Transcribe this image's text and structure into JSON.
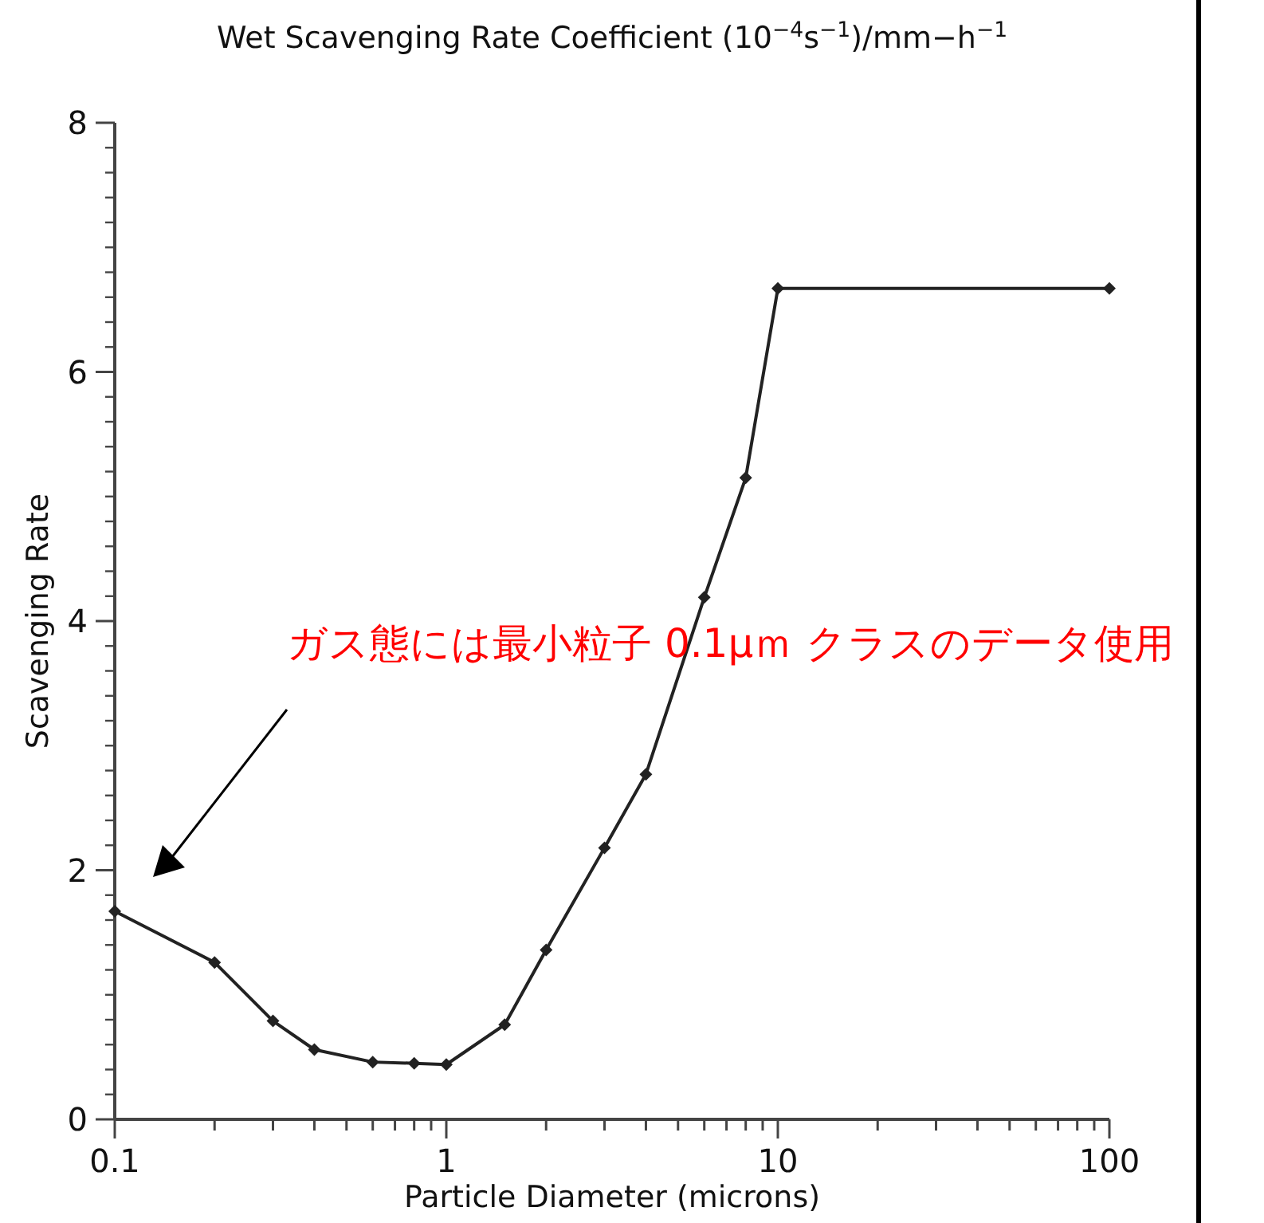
{
  "chart_data": {
    "type": "line",
    "title": "Wet Scavenging Rate Coefficient (10$^{−4}$s$^{−1}$)/mm−h$^{−1}$",
    "xlabel": "Particle Diameter (microns)",
    "ylabel": "Scavenging Rate",
    "log": "x",
    "x": [
      0.1,
      0.2,
      0.3,
      0.4,
      0.6,
      0.8,
      1,
      1.5,
      2,
      3,
      4,
      6,
      8,
      10,
      100
    ],
    "values": [
      1.67,
      1.26,
      0.79,
      0.56,
      0.46,
      0.45,
      0.44,
      0.76,
      1.36,
      2.18,
      2.77,
      4.19,
      5.15,
      6.67,
      6.67
    ],
    "color": "#222222",
    "marker": "diamond",
    "line_style": "solid",
    "grid": false,
    "xlim": [
      0.1,
      100
    ],
    "xticks": [
      0.1,
      1,
      10,
      100
    ],
    "ylim": [
      0,
      8
    ],
    "yticks": [
      0,
      2,
      4,
      6,
      8
    ],
    "annotations": [
      "ガス態には最小粒子 0.1μｍ クラスのデータ使用"
    ]
  }
}
